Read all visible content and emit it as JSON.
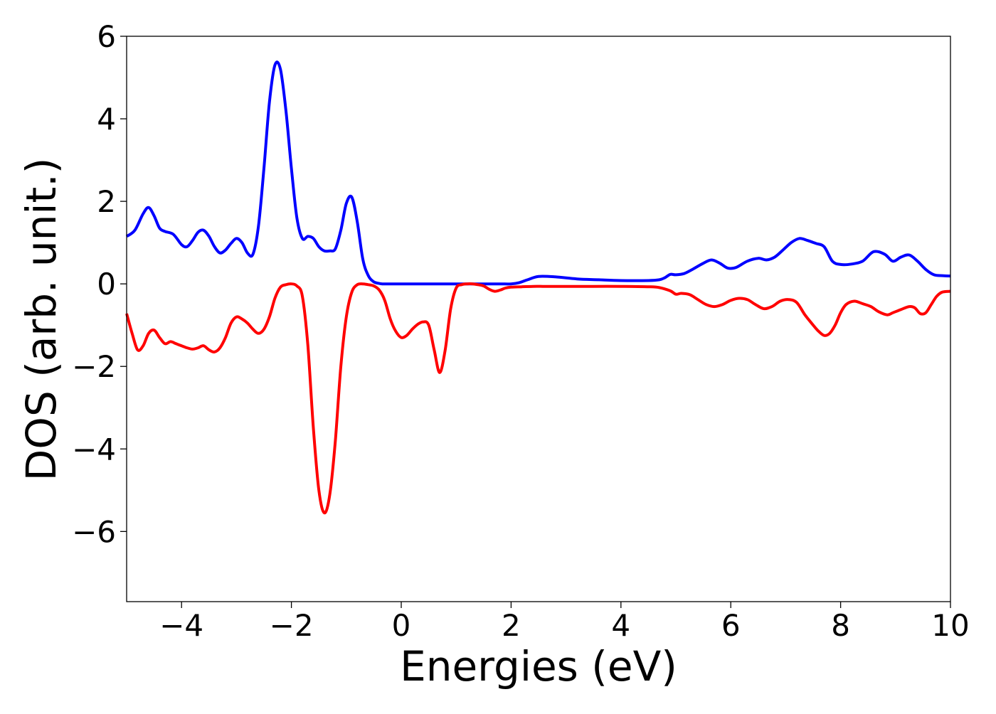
{
  "chart_data": {
    "type": "line",
    "title": "",
    "xlabel": "Energies (eV)",
    "ylabel": "DOS (arb. unit.)",
    "xlim": [
      -5,
      10
    ],
    "ylim": [
      -7.7,
      6.0
    ],
    "xticks": [
      -4,
      -2,
      0,
      2,
      4,
      6,
      8,
      10
    ],
    "xtick_labels": [
      "−4",
      "−2",
      "0",
      "2",
      "4",
      "6",
      "8",
      "10"
    ],
    "yticks": [
      6,
      4,
      2,
      0,
      -2,
      -4,
      -6
    ],
    "ytick_labels": [
      "6",
      "4",
      "2",
      "0",
      "−2",
      "−4",
      "−6"
    ],
    "grid": false,
    "legend": "none",
    "series": [
      {
        "color": "#0000ff",
        "x": [
          -5.0,
          -4.85,
          -4.7,
          -4.6,
          -4.5,
          -4.4,
          -4.3,
          -4.15,
          -4.0,
          -3.9,
          -3.8,
          -3.7,
          -3.6,
          -3.5,
          -3.4,
          -3.3,
          -3.2,
          -3.1,
          -3.0,
          -2.9,
          -2.8,
          -2.7,
          -2.6,
          -2.5,
          -2.4,
          -2.3,
          -2.2,
          -2.1,
          -2.0,
          -1.9,
          -1.8,
          -1.7,
          -1.6,
          -1.5,
          -1.4,
          -1.3,
          -1.2,
          -1.1,
          -1.0,
          -0.9,
          -0.8,
          -0.7,
          -0.6,
          -0.5,
          -0.4,
          -0.35,
          -0.3,
          -0.2,
          -0.1,
          0.0,
          0.1,
          0.2,
          0.5,
          1.0,
          1.5,
          1.8,
          2.0,
          2.15,
          2.3,
          2.5,
          2.8,
          3.2,
          3.6,
          4.0,
          4.5,
          4.7,
          4.8,
          4.9,
          5.0,
          5.15,
          5.3,
          5.5,
          5.65,
          5.8,
          5.95,
          6.1,
          6.3,
          6.5,
          6.65,
          6.8,
          6.95,
          7.1,
          7.25,
          7.4,
          7.55,
          7.7,
          7.85,
          8.0,
          8.2,
          8.4,
          8.6,
          8.8,
          8.95,
          9.1,
          9.25,
          9.4,
          9.55,
          9.7,
          9.85,
          10.0
        ],
        "y": [
          1.15,
          1.3,
          1.7,
          1.85,
          1.65,
          1.35,
          1.27,
          1.2,
          0.95,
          0.9,
          1.05,
          1.25,
          1.3,
          1.15,
          0.9,
          0.75,
          0.82,
          0.98,
          1.1,
          1.0,
          0.75,
          0.72,
          1.4,
          2.8,
          4.4,
          5.3,
          5.2,
          4.2,
          2.8,
          1.6,
          1.1,
          1.15,
          1.1,
          0.9,
          0.8,
          0.8,
          0.85,
          1.3,
          1.95,
          2.1,
          1.5,
          0.6,
          0.2,
          0.05,
          0.01,
          0.0,
          0.0,
          0.0,
          0.0,
          0.0,
          0.0,
          0.0,
          0.0,
          0.0,
          0.0,
          0.0,
          0.0,
          0.03,
          0.1,
          0.18,
          0.17,
          0.12,
          0.1,
          0.08,
          0.08,
          0.1,
          0.15,
          0.23,
          0.22,
          0.25,
          0.35,
          0.5,
          0.58,
          0.5,
          0.38,
          0.4,
          0.55,
          0.62,
          0.58,
          0.65,
          0.82,
          1.0,
          1.1,
          1.05,
          0.98,
          0.9,
          0.55,
          0.47,
          0.48,
          0.55,
          0.78,
          0.72,
          0.55,
          0.65,
          0.7,
          0.55,
          0.35,
          0.22,
          0.2,
          0.19
        ]
      },
      {
        "color": "#ff0000",
        "x": [
          -5.0,
          -4.9,
          -4.8,
          -4.7,
          -4.6,
          -4.5,
          -4.4,
          -4.3,
          -4.2,
          -4.1,
          -4.0,
          -3.9,
          -3.8,
          -3.7,
          -3.6,
          -3.5,
          -3.4,
          -3.3,
          -3.2,
          -3.1,
          -3.0,
          -2.9,
          -2.8,
          -2.7,
          -2.6,
          -2.5,
          -2.4,
          -2.3,
          -2.2,
          -2.1,
          -2.0,
          -1.9,
          -1.8,
          -1.7,
          -1.6,
          -1.5,
          -1.4,
          -1.3,
          -1.2,
          -1.1,
          -1.0,
          -0.9,
          -0.8,
          -0.7,
          -0.6,
          -0.5,
          -0.4,
          -0.3,
          -0.2,
          -0.1,
          0.0,
          0.1,
          0.2,
          0.3,
          0.4,
          0.5,
          0.6,
          0.7,
          0.8,
          0.9,
          1.0,
          1.1,
          1.2,
          1.3,
          1.4,
          1.5,
          1.6,
          1.7,
          1.8,
          1.9,
          2.0,
          2.2,
          2.4,
          2.6,
          2.8,
          3.0,
          3.5,
          4.0,
          4.5,
          4.7,
          4.9,
          5.0,
          5.1,
          5.25,
          5.4,
          5.55,
          5.7,
          5.85,
          6.0,
          6.15,
          6.3,
          6.45,
          6.6,
          6.75,
          6.9,
          7.05,
          7.2,
          7.35,
          7.5,
          7.6,
          7.7,
          7.8,
          7.9,
          8.0,
          8.1,
          8.25,
          8.4,
          8.55,
          8.7,
          8.85,
          8.95,
          9.1,
          9.25,
          9.35,
          9.45,
          9.55,
          9.65,
          9.75,
          9.85,
          10.0
        ],
        "y": [
          -0.72,
          -1.2,
          -1.6,
          -1.5,
          -1.2,
          -1.12,
          -1.3,
          -1.45,
          -1.4,
          -1.45,
          -1.5,
          -1.55,
          -1.58,
          -1.55,
          -1.5,
          -1.6,
          -1.65,
          -1.55,
          -1.3,
          -0.95,
          -0.8,
          -0.85,
          -0.95,
          -1.1,
          -1.2,
          -1.1,
          -0.8,
          -0.35,
          -0.08,
          -0.02,
          0.0,
          -0.05,
          -0.3,
          -1.5,
          -3.5,
          -5.0,
          -5.55,
          -5.1,
          -3.8,
          -2.0,
          -0.8,
          -0.2,
          -0.02,
          0.0,
          -0.02,
          -0.05,
          -0.15,
          -0.4,
          -0.85,
          -1.15,
          -1.3,
          -1.25,
          -1.1,
          -0.98,
          -0.92,
          -1.0,
          -1.6,
          -2.15,
          -1.6,
          -0.6,
          -0.1,
          -0.02,
          0.0,
          0.0,
          -0.02,
          -0.05,
          -0.13,
          -0.18,
          -0.15,
          -0.1,
          -0.08,
          -0.07,
          -0.06,
          -0.06,
          -0.06,
          -0.06,
          -0.06,
          -0.06,
          -0.07,
          -0.09,
          -0.17,
          -0.25,
          -0.23,
          -0.26,
          -0.38,
          -0.5,
          -0.55,
          -0.5,
          -0.4,
          -0.35,
          -0.38,
          -0.5,
          -0.6,
          -0.55,
          -0.42,
          -0.38,
          -0.45,
          -0.75,
          -1.0,
          -1.15,
          -1.25,
          -1.2,
          -1.0,
          -0.7,
          -0.5,
          -0.42,
          -0.48,
          -0.55,
          -0.68,
          -0.75,
          -0.7,
          -0.62,
          -0.55,
          -0.58,
          -0.72,
          -0.7,
          -0.5,
          -0.3,
          -0.2,
          -0.18
        ]
      }
    ]
  }
}
